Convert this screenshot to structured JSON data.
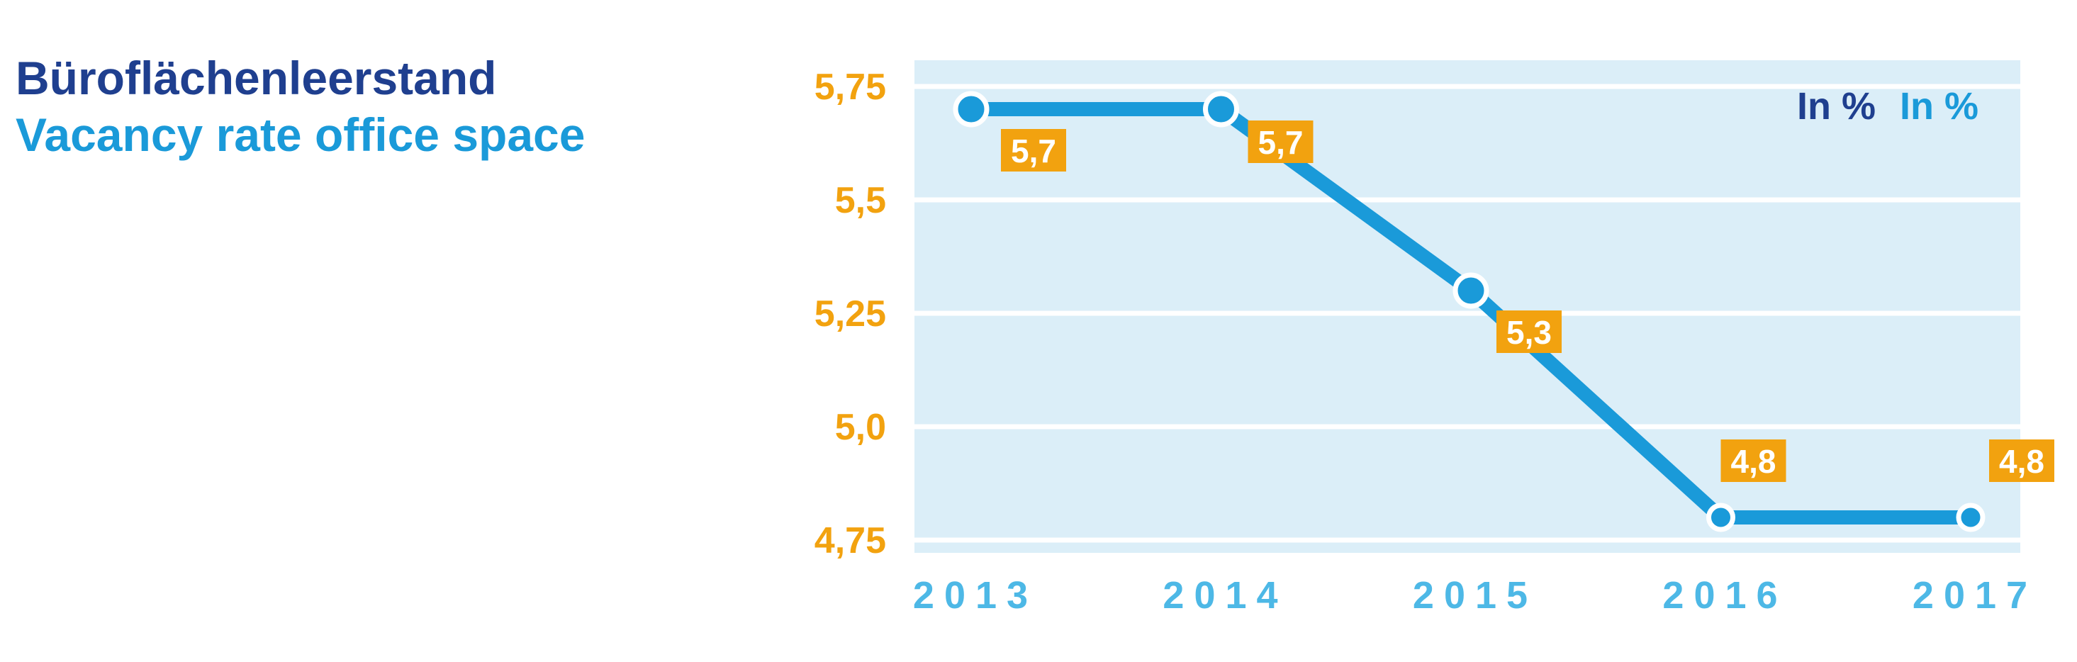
{
  "title": {
    "de": "Büroflächenleerstand",
    "en": "Vacancy rate office space"
  },
  "colors": {
    "title_de": "#1f3f8f",
    "title_en": "#1a9ad9",
    "plot_background": "#dbeef8",
    "gridline": "#ffffff",
    "line": "#1a9ad9",
    "marker_outline": "#ffffff",
    "label_box": "#f2a20f",
    "label_text": "#ffffff",
    "y_tick": "#f2a20f",
    "x_tick": "#4db8e6",
    "unit_de": "#1f3f8f",
    "unit_en": "#1a9ad9"
  },
  "chart_data": {
    "type": "line",
    "categories": [
      "2013",
      "2014",
      "2015",
      "2016",
      "2017"
    ],
    "series": [
      {
        "values": [
          5.7,
          5.7,
          5.3,
          4.8,
          4.8
        ],
        "data_labels": [
          "5,7",
          "5,7",
          "5,3",
          "4,8",
          "4,8"
        ]
      }
    ],
    "yticks": [
      5.75,
      5.5,
      5.25,
      5.0,
      4.75
    ],
    "ytick_labels": [
      "5,75",
      "5,5",
      "5,25",
      "5,0",
      "4,75"
    ],
    "ylim": [
      4.75,
      5.75
    ],
    "grid": true,
    "unit_labels": [
      "In %",
      "In %"
    ],
    "xlabel": "",
    "ylabel": ""
  }
}
